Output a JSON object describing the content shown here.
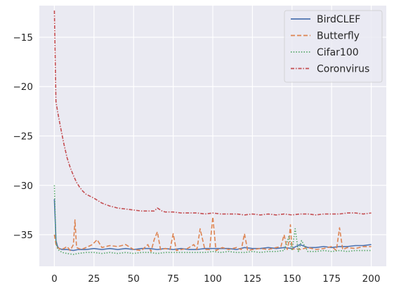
{
  "chart_data": {
    "type": "line",
    "title": "",
    "xlabel": "",
    "ylabel": "",
    "xlim": [
      -9.5,
      209.5
    ],
    "ylim": [
      -38.2,
      -11.8
    ],
    "xticks": [
      0,
      25,
      50,
      75,
      100,
      125,
      150,
      175,
      200
    ],
    "xtick_labels": [
      "0",
      "25",
      "50",
      "75",
      "100",
      "125",
      "150",
      "175",
      "200"
    ],
    "yticks": [
      -35,
      -30,
      -25,
      -20,
      -15
    ],
    "ytick_labels": [
      "−35",
      "−30",
      "−25",
      "−20",
      "−15"
    ],
    "grid": true,
    "legend_position": "top-right",
    "series": [
      {
        "name": "BirdCLEF",
        "color": "#4c72b0",
        "dash": "solid",
        "x": [
          0,
          1,
          2,
          3,
          5,
          8,
          12,
          15,
          20,
          25,
          30,
          35,
          40,
          45,
          50,
          55,
          60,
          65,
          70,
          75,
          80,
          85,
          90,
          95,
          100,
          105,
          110,
          115,
          120,
          125,
          130,
          135,
          140,
          145,
          150,
          155,
          160,
          165,
          170,
          175,
          180,
          185,
          190,
          195,
          200
        ],
        "values": [
          -31.4,
          -35.6,
          -36.2,
          -36.4,
          -36.5,
          -36.5,
          -36.6,
          -36.5,
          -36.5,
          -36.4,
          -36.5,
          -36.4,
          -36.5,
          -36.4,
          -36.5,
          -36.4,
          -36.4,
          -36.5,
          -36.4,
          -36.5,
          -36.4,
          -36.5,
          -36.5,
          -36.4,
          -36.4,
          -36.4,
          -36.4,
          -36.5,
          -36.3,
          -36.4,
          -36.4,
          -36.3,
          -36.4,
          -36.3,
          -36.4,
          -36.0,
          -36.3,
          -36.3,
          -36.2,
          -36.3,
          -36.2,
          -36.2,
          -36.1,
          -36.1,
          -36.0
        ]
      },
      {
        "name": "Butterfly",
        "color": "#dd8452",
        "dash": "dashed",
        "x": [
          0,
          1,
          2,
          4,
          6,
          8,
          10,
          12,
          13,
          14,
          17,
          20,
          24,
          27,
          30,
          35,
          40,
          45,
          50,
          55,
          59,
          61,
          63,
          65,
          67,
          70,
          73,
          75,
          77,
          80,
          84,
          88,
          90,
          92,
          95,
          98,
          100,
          102,
          106,
          110,
          115,
          118,
          120,
          122,
          125,
          130,
          135,
          140,
          143,
          145,
          147,
          148,
          149,
          150,
          152,
          155,
          160,
          165,
          170,
          175,
          178,
          180,
          182,
          185,
          190,
          195,
          200
        ],
        "values": [
          -35.0,
          -36.0,
          -36.3,
          -36.5,
          -36.4,
          -36.2,
          -36.6,
          -36.0,
          -33.5,
          -36.3,
          -36.5,
          -36.3,
          -36.0,
          -35.5,
          -36.3,
          -36.1,
          -36.2,
          -36.0,
          -36.5,
          -36.6,
          -36.0,
          -36.7,
          -35.5,
          -34.7,
          -36.5,
          -36.4,
          -36.5,
          -34.9,
          -36.6,
          -36.5,
          -36.4,
          -36.0,
          -36.5,
          -34.4,
          -36.5,
          -36.5,
          -33.2,
          -36.6,
          -36.3,
          -36.5,
          -36.3,
          -36.5,
          -34.9,
          -36.6,
          -36.5,
          -36.4,
          -36.5,
          -36.3,
          -36.2,
          -35.0,
          -36.5,
          -35.7,
          -34.0,
          -36.5,
          -36.4,
          -36.5,
          -36.3,
          -36.5,
          -36.4,
          -36.2,
          -36.6,
          -34.3,
          -36.5,
          -36.3,
          -36.4,
          -36.2,
          -36.2
        ]
      },
      {
        "name": "Cifar100",
        "color": "#55a868",
        "dash": "dotted",
        "x": [
          0,
          1,
          2,
          3,
          5,
          8,
          12,
          15,
          20,
          25,
          30,
          35,
          40,
          45,
          50,
          55,
          60,
          65,
          70,
          75,
          80,
          85,
          90,
          95,
          100,
          105,
          110,
          115,
          120,
          125,
          130,
          135,
          140,
          145,
          148,
          150,
          152,
          154,
          156,
          160,
          165,
          170,
          175,
          180,
          185,
          190,
          195,
          200
        ],
        "values": [
          -30.0,
          -35.8,
          -36.4,
          -36.6,
          -36.8,
          -36.9,
          -37.0,
          -36.9,
          -36.8,
          -36.8,
          -36.9,
          -36.8,
          -36.9,
          -36.8,
          -36.9,
          -36.8,
          -36.8,
          -36.9,
          -36.8,
          -36.8,
          -36.8,
          -36.8,
          -36.8,
          -36.8,
          -36.7,
          -36.8,
          -36.7,
          -36.8,
          -36.8,
          -36.7,
          -36.8,
          -36.7,
          -36.7,
          -36.6,
          -35.2,
          -36.6,
          -34.4,
          -36.7,
          -35.6,
          -36.7,
          -36.7,
          -36.6,
          -36.7,
          -36.6,
          -36.7,
          -36.6,
          -36.6,
          -36.6
        ]
      },
      {
        "name": "Coronvirus",
        "color": "#c44e52",
        "dash": "dashdot",
        "x": [
          0,
          1,
          2,
          4,
          6,
          8,
          10,
          12,
          14,
          16,
          18,
          20,
          25,
          30,
          35,
          40,
          45,
          50,
          55,
          60,
          63,
          65,
          68,
          70,
          75,
          80,
          85,
          90,
          95,
          100,
          105,
          110,
          115,
          120,
          125,
          130,
          135,
          140,
          145,
          150,
          155,
          160,
          165,
          170,
          175,
          180,
          185,
          190,
          195,
          200
        ],
        "values": [
          -12.3,
          -21.5,
          -22.5,
          -24.2,
          -25.8,
          -27.2,
          -28.2,
          -29.0,
          -29.7,
          -30.2,
          -30.6,
          -30.9,
          -31.3,
          -31.8,
          -32.1,
          -32.3,
          -32.4,
          -32.5,
          -32.6,
          -32.6,
          -32.6,
          -32.3,
          -32.6,
          -32.7,
          -32.7,
          -32.8,
          -32.8,
          -32.8,
          -32.9,
          -32.8,
          -32.9,
          -32.9,
          -32.9,
          -33.0,
          -32.9,
          -33.0,
          -32.9,
          -33.0,
          -32.9,
          -33.0,
          -32.9,
          -32.9,
          -33.0,
          -32.9,
          -32.9,
          -32.9,
          -32.8,
          -32.8,
          -32.9,
          -32.8
        ]
      }
    ]
  }
}
